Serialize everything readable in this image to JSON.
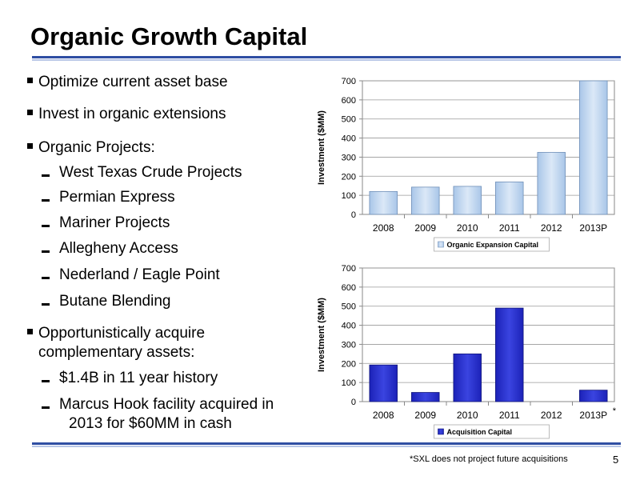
{
  "slide": {
    "title": "Organic Growth Capital",
    "footnote": "*SXL does not project future acquisitions",
    "page_number": "5"
  },
  "bullets": [
    {
      "level": 1,
      "text": "Optimize current asset base"
    },
    {
      "level": 1,
      "text": "Invest in organic extensions"
    },
    {
      "level": 1,
      "text": "Organic Projects:"
    },
    {
      "level": 2,
      "text": "West Texas Crude Projects"
    },
    {
      "level": 2,
      "text": "Permian Express"
    },
    {
      "level": 2,
      "text": "Mariner Projects"
    },
    {
      "level": 2,
      "text": "Allegheny Access"
    },
    {
      "level": 2,
      "text": "Nederland / Eagle Point"
    },
    {
      "level": 2,
      "text": "Butane Blending"
    },
    {
      "level": 1,
      "text": "Opportunistically acquire",
      "cont": "complementary assets:"
    },
    {
      "level": 2,
      "text": "$1.4B in 11 year history"
    },
    {
      "level": 2,
      "text": "Marcus Hook facility acquired in",
      "cont": "2013 for $60MM in cash"
    }
  ],
  "chart_data": [
    {
      "type": "bar",
      "title": "",
      "xlabel": "",
      "ylabel": "Investment ($MM)",
      "ylim": [
        0,
        700
      ],
      "yticks": [
        0,
        100,
        200,
        300,
        400,
        500,
        600,
        700
      ],
      "categories": [
        "2008",
        "2009",
        "2010",
        "2011",
        "2012",
        "2013P"
      ],
      "series": [
        {
          "name": "Organic Expansion Capital",
          "values": [
            120,
            143,
            147,
            170,
            325,
            700
          ],
          "color": "#a9c6e8"
        }
      ],
      "grid": true,
      "legend": "bottom"
    },
    {
      "type": "bar",
      "title": "",
      "xlabel": "",
      "ylabel": "Investment ($MM)",
      "ylim": [
        0,
        700
      ],
      "yticks": [
        0,
        100,
        200,
        300,
        400,
        500,
        600,
        700
      ],
      "categories": [
        "2008",
        "2009",
        "2010",
        "2011",
        "2012",
        "2013P"
      ],
      "category_note": {
        "2013P": "*"
      },
      "series": [
        {
          "name": "Acquisition Capital",
          "values": [
            192,
            48,
            250,
            490,
            0,
            60
          ],
          "color": "#1c22b8"
        }
      ],
      "grid": true,
      "legend": "bottom"
    }
  ]
}
